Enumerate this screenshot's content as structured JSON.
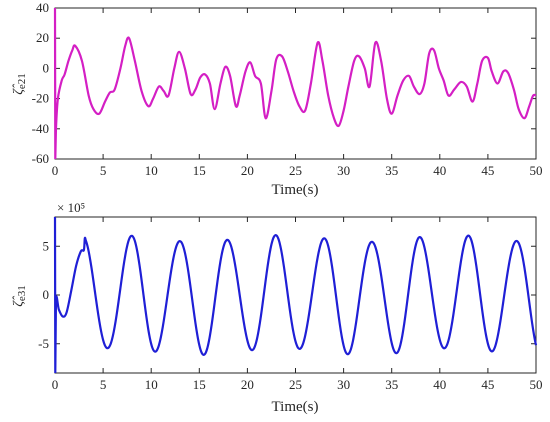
{
  "figure": {
    "chart_data": [
      {
        "type": "line",
        "xlabel": "Time(s)",
        "ylabel_symbol": "ζ̂",
        "ylabel_subscript": "e21",
        "xlim": [
          0,
          50
        ],
        "ylim": [
          -60,
          40
        ],
        "xticks": [
          0,
          5,
          10,
          15,
          20,
          25,
          30,
          35,
          40,
          45,
          50
        ],
        "yticks": [
          -60,
          -40,
          -20,
          0,
          20,
          40
        ],
        "exponent_label": "",
        "line_color": "#D41FC4",
        "series": [
          {
            "x": [
              0,
              0.03,
              0.1,
              0.3,
              0.7,
              1.0,
              1.4,
              1.8,
              2.1,
              2.8,
              3.5,
              4.0,
              4.6,
              5.2,
              5.7,
              6.2,
              6.8,
              7.3,
              7.7,
              8.3,
              9.0,
              9.7,
              10.2,
              10.8,
              11.3,
              11.8,
              12.4,
              12.9,
              13.5,
              14.1,
              14.6,
              15.1,
              15.6,
              16.1,
              16.6,
              17.2,
              17.7,
              18.2,
              18.8,
              19.2,
              19.8,
              20.3,
              20.8,
              21.4,
              21.9,
              22.5,
              23.0,
              23.6,
              24.2,
              24.8,
              25.4,
              26.0,
              26.6,
              27.3,
              27.8,
              28.4,
              29.0,
              29.5,
              30.0,
              30.5,
              31.1,
              31.6,
              32.2,
              32.7,
              33.3,
              33.9,
              34.5,
              35.0,
              35.6,
              36.2,
              36.8,
              37.3,
              37.9,
              38.4,
              38.9,
              39.4,
              39.9,
              40.4,
              40.9,
              41.5,
              42.2,
              42.8,
              43.4,
              43.9,
              44.4,
              45.0,
              45.4,
              46.0,
              46.6,
              47.1,
              47.7,
              48.2,
              48.8,
              49.3,
              49.7,
              50.0
            ],
            "y": [
              40,
              -60,
              -40,
              -20,
              -8,
              -4,
              5,
              12,
              15,
              5,
              -18,
              -27,
              -30,
              -22,
              -16,
              -14,
              0,
              15,
              20,
              5,
              -15,
              -25,
              -20,
              -12,
              -15,
              -18,
              0,
              11,
              0,
              -17,
              -14,
              -6,
              -4,
              -10,
              -27,
              -10,
              1,
              -5,
              -25,
              -18,
              -2,
              4,
              -5,
              -10,
              -33,
              -15,
              6,
              8,
              -2,
              -15,
              -25,
              -28,
              -10,
              17,
              5,
              -18,
              -33,
              -38,
              -28,
              -12,
              5,
              8,
              0,
              -12,
              17,
              5,
              -20,
              -30,
              -18,
              -8,
              -5,
              -12,
              -17,
              -10,
              10,
              12,
              0,
              -8,
              -18,
              -14,
              -9,
              -12,
              -22,
              -10,
              5,
              7,
              -2,
              -10,
              -2,
              -3,
              -14,
              -27,
              -33,
              -25,
              -18,
              -18
            ]
          }
        ]
      },
      {
        "type": "line",
        "xlabel": "Time(s)",
        "ylabel_symbol": "ζ̂",
        "ylabel_subscript": "e31",
        "xlim": [
          0,
          50
        ],
        "ylim": [
          -8,
          8
        ],
        "xticks": [
          0,
          5,
          10,
          15,
          20,
          25,
          30,
          35,
          40,
          45,
          50
        ],
        "yticks": [
          -5,
          0,
          5
        ],
        "exponent_label": "× 10⁵",
        "line_color": "#1F1FD6",
        "series": [
          {
            "x": [
              0,
              0.03,
              0.1,
              0.4,
              0.8,
              1.2,
              1.7,
              2.2,
              2.7,
              3.0
            ],
            "y": [
              8,
              -8,
              -0.5,
              -1.5,
              -2.2,
              -1.8,
              0.5,
              3.0,
              4.5,
              4.6
            ]
          }
        ]
      }
    ]
  }
}
